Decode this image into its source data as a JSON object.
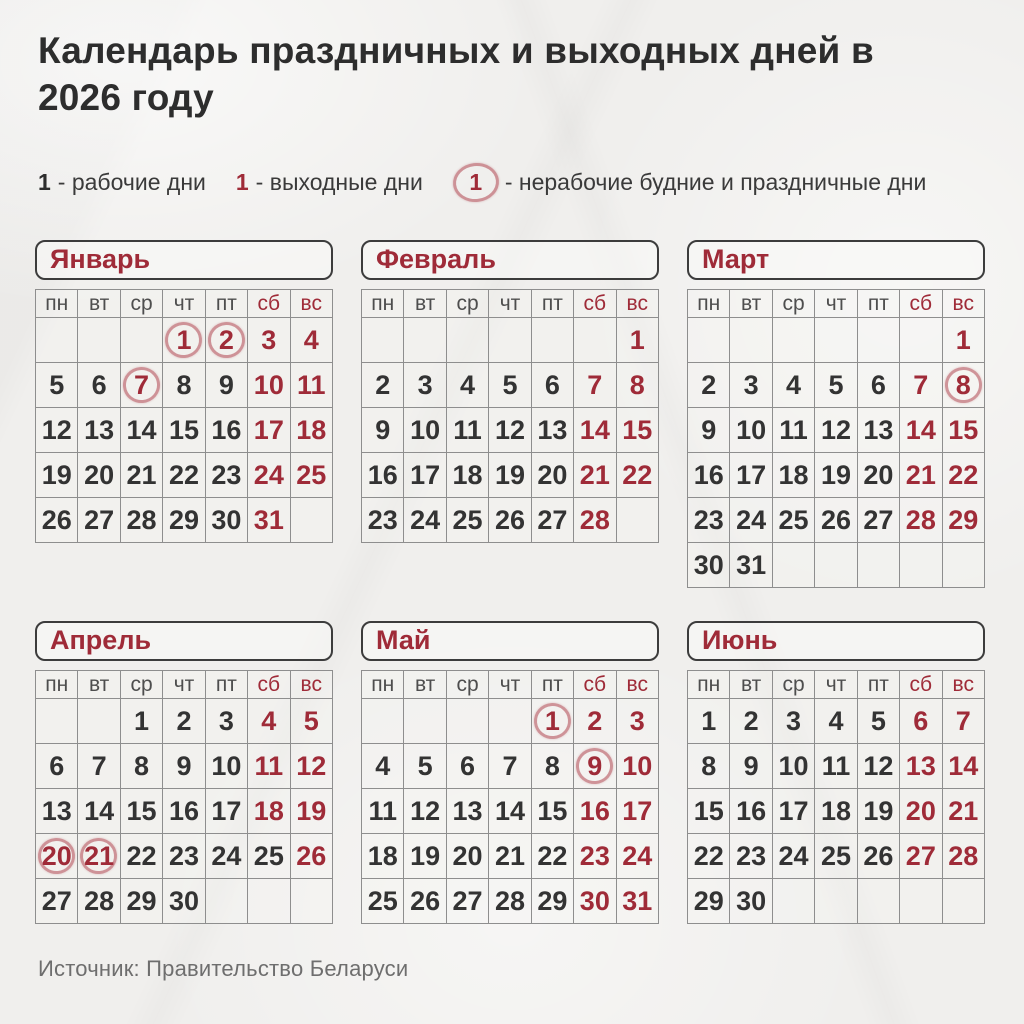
{
  "title": "Календарь праздничных и выходных дней в 2026 году",
  "legend": {
    "working_symbol": "1",
    "working_label": "- рабочие дни",
    "weekend_symbol": "1",
    "weekend_label": "- выходные дни",
    "holiday_symbol": "1",
    "holiday_label": "- нерабочие будние и праздничные дни"
  },
  "weekdays": [
    "пн",
    "вт",
    "ср",
    "чт",
    "пт",
    "сб",
    "вс"
  ],
  "colors": {
    "accent_red": "#9f2b38",
    "ink": "#2d2d2d",
    "grid_line": "#8e8e8e",
    "background": "#f0efed",
    "source_gray": "#6e6e6e"
  },
  "cell_type_meaning": {
    "w": "рабочий день",
    "r": "выходной день",
    "c": "нерабочий будний / праздничный день (обведён)"
  },
  "months": [
    {
      "name": "Январь",
      "weeks": [
        [
          "",
          "",
          "",
          "1c",
          "2c",
          "3r",
          "4r"
        ],
        [
          "5w",
          "6w",
          "7c",
          "8w",
          "9w",
          "10r",
          "11r"
        ],
        [
          "12w",
          "13w",
          "14w",
          "15w",
          "16w",
          "17r",
          "18r"
        ],
        [
          "19w",
          "20w",
          "21w",
          "22w",
          "23w",
          "24r",
          "25r"
        ],
        [
          "26w",
          "27w",
          "28w",
          "29w",
          "30w",
          "31r",
          ""
        ]
      ]
    },
    {
      "name": "Февраль",
      "weeks": [
        [
          "",
          "",
          "",
          "",
          "",
          "",
          "1r"
        ],
        [
          "2w",
          "3w",
          "4w",
          "5w",
          "6w",
          "7r",
          "8r"
        ],
        [
          "9w",
          "10w",
          "11w",
          "12w",
          "13w",
          "14r",
          "15r"
        ],
        [
          "16w",
          "17w",
          "18w",
          "19w",
          "20w",
          "21r",
          "22r"
        ],
        [
          "23w",
          "24w",
          "25w",
          "26w",
          "27w",
          "28r",
          ""
        ]
      ]
    },
    {
      "name": "Март",
      "weeks": [
        [
          "",
          "",
          "",
          "",
          "",
          "",
          "1r"
        ],
        [
          "2w",
          "3w",
          "4w",
          "5w",
          "6w",
          "7r",
          "8c"
        ],
        [
          "9w",
          "10w",
          "11w",
          "12w",
          "13w",
          "14r",
          "15r"
        ],
        [
          "16w",
          "17w",
          "18w",
          "19w",
          "20w",
          "21r",
          "22r"
        ],
        [
          "23w",
          "24w",
          "25w",
          "26w",
          "27w",
          "28r",
          "29r"
        ],
        [
          "30w",
          "31w",
          "",
          "",
          "",
          "",
          ""
        ]
      ]
    },
    {
      "name": "Апрель",
      "weeks": [
        [
          "",
          "",
          "1w",
          "2w",
          "3w",
          "4r",
          "5r"
        ],
        [
          "6w",
          "7w",
          "8w",
          "9w",
          "10w",
          "11r",
          "12r"
        ],
        [
          "13w",
          "14w",
          "15w",
          "16w",
          "17w",
          "18r",
          "19r"
        ],
        [
          "20c",
          "21c",
          "22w",
          "23w",
          "24w",
          "25w",
          "26r"
        ],
        [
          "27w",
          "28w",
          "29w",
          "30w",
          "",
          "",
          ""
        ]
      ]
    },
    {
      "name": "Май",
      "weeks": [
        [
          "",
          "",
          "",
          "",
          "1c",
          "2r",
          "3r"
        ],
        [
          "4w",
          "5w",
          "6w",
          "7w",
          "8w",
          "9c",
          "10r"
        ],
        [
          "11w",
          "12w",
          "13w",
          "14w",
          "15w",
          "16r",
          "17r"
        ],
        [
          "18w",
          "19w",
          "20w",
          "21w",
          "22w",
          "23r",
          "24r"
        ],
        [
          "25w",
          "26w",
          "27w",
          "28w",
          "29w",
          "30r",
          "31r"
        ]
      ]
    },
    {
      "name": "Июнь",
      "weeks": [
        [
          "1w",
          "2w",
          "3w",
          "4w",
          "5w",
          "6r",
          "7r"
        ],
        [
          "8w",
          "9w",
          "10w",
          "11w",
          "12w",
          "13r",
          "14r"
        ],
        [
          "15w",
          "16w",
          "17w",
          "18w",
          "19w",
          "20r",
          "21r"
        ],
        [
          "22w",
          "23w",
          "24w",
          "25w",
          "26w",
          "27r",
          "28r"
        ],
        [
          "29w",
          "30w",
          "",
          "",
          "",
          "",
          ""
        ]
      ]
    }
  ],
  "source": "Источник: Правительство Беларуси"
}
